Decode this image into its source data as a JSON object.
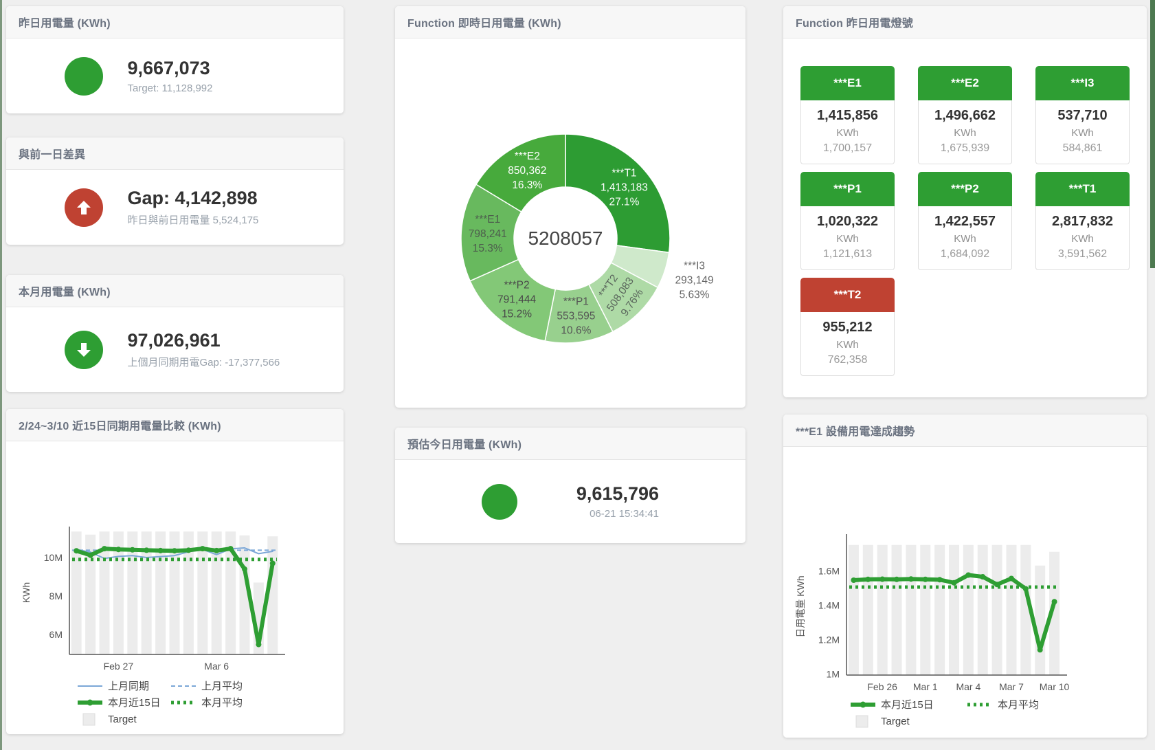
{
  "colors": {
    "green": "#2e9e33",
    "red": "#bf4232",
    "blue_line": "#7ba7d7",
    "bar_gray": "#ececec",
    "header_text": "#6a7280"
  },
  "cards": {
    "yesterday": {
      "title": "昨日用電量 (KWh)",
      "value": "9,667,073",
      "subtitle": "Target: 11,128,992"
    },
    "gap": {
      "title": "與前一日差異",
      "value": "Gap: 4,142,898",
      "subtitle": "昨日與前日用電量 5,524,175"
    },
    "month": {
      "title": "本月用電量 (KWh)",
      "value": "97,026,961",
      "subtitle": "上個月同期用電Gap: -17,377,566"
    },
    "donut": {
      "title": "Function 即時日用電量 (KWh)"
    },
    "estimate": {
      "title": "預估今日用電量 (KWh)",
      "value": "9,615,796",
      "subtitle": "06-21 15:34:41"
    },
    "status": {
      "title": "Function 昨日用電燈號"
    },
    "compare": {
      "title": "2/24~3/10 近15日同期用電量比較 (KWh)"
    },
    "trend": {
      "title": "***E1 設備用電達成趨勢"
    }
  },
  "status_tiles": [
    {
      "name": "***E1",
      "value": "1,415,856",
      "unit": "KWh",
      "target": "1,700,157",
      "status": "green"
    },
    {
      "name": "***E2",
      "value": "1,496,662",
      "unit": "KWh",
      "target": "1,675,939",
      "status": "green"
    },
    {
      "name": "***I3",
      "value": "537,710",
      "unit": "KWh",
      "target": "584,861",
      "status": "green"
    },
    {
      "name": "***P1",
      "value": "1,020,322",
      "unit": "KWh",
      "target": "1,121,613",
      "status": "green"
    },
    {
      "name": "***P2",
      "value": "1,422,557",
      "unit": "KWh",
      "target": "1,684,092",
      "status": "green"
    },
    {
      "name": "***T1",
      "value": "2,817,832",
      "unit": "KWh",
      "target": "3,591,562",
      "status": "green"
    },
    {
      "name": "***T2",
      "value": "955,212",
      "unit": "KWh",
      "target": "762,358",
      "status": "red"
    }
  ],
  "chart_data": [
    {
      "id": "donut",
      "type": "pie",
      "title": "Function 即時日用電量 (KWh)",
      "center_label": "5208057",
      "slices": [
        {
          "name": "***T1",
          "value": 1413183,
          "display": "1,413,183",
          "pct": "27.1%",
          "color": "#2d9c33",
          "label_color": "#ffffff"
        },
        {
          "name": "***I3",
          "value": 293149,
          "display": "293,149",
          "pct": "5.63%",
          "color": "#cfe9cb",
          "label_color": "#666666",
          "outside": true
        },
        {
          "name": "***T2",
          "value": 508083,
          "display": "508,083",
          "pct": "9.76%",
          "color": "#aedaa6",
          "label_color": "#5a665c",
          "rotate": -55
        },
        {
          "name": "***P1",
          "value": 553595,
          "display": "553,595",
          "pct": "10.6%",
          "color": "#98d08e",
          "label_color": "#555555"
        },
        {
          "name": "***P2",
          "value": 791444,
          "display": "791,444",
          "pct": "15.2%",
          "color": "#83c877",
          "label_color": "#4a4a4a"
        },
        {
          "name": "***E1",
          "value": 798241,
          "display": "798,241",
          "pct": "15.3%",
          "color": "#68b95e",
          "label_color": "#4d5d4d"
        },
        {
          "name": "***E2",
          "value": 850362,
          "display": "850,362",
          "pct": "16.3%",
          "color": "#47aa3c",
          "label_color": "#ffffff"
        }
      ]
    },
    {
      "id": "compare",
      "type": "line+bar",
      "title": "2/24~3/10 近15日同期用電量比較 (KWh)",
      "ylabel": "KWh",
      "ymin": 4964000,
      "ymax": 11393000,
      "yticks": [
        {
          "v": 6000000,
          "label": "6M"
        },
        {
          "v": 8000000,
          "label": "8M"
        },
        {
          "v": 10000000,
          "label": "10M"
        }
      ],
      "xticks": [
        {
          "i": 3,
          "label": "Feb 27"
        },
        {
          "i": 10,
          "label": "Mar 6"
        }
      ],
      "bars": {
        "name": "Target",
        "color": "#ececec",
        "values": [
          11350000,
          11190000,
          11350000,
          11350000,
          11350000,
          11350000,
          11350000,
          11350000,
          11350000,
          11350000,
          11350000,
          11350000,
          11150000,
          8700000,
          11100000
        ]
      },
      "series": [
        {
          "name": "上月同期",
          "type": "line",
          "color": "#7ba7d7",
          "width": 2,
          "values": [
            10420000,
            10280000,
            9950000,
            10060000,
            10100000,
            10000000,
            10050000,
            10100000,
            10300000,
            10420000,
            10150000,
            10450000,
            10500000,
            10200000,
            10320000
          ]
        },
        {
          "name": "上月平均",
          "type": "dashed",
          "color": "#7ba7d7",
          "width": 2,
          "value": 10380000
        },
        {
          "name": "本月平均",
          "type": "dotted",
          "color": "#2e9e33",
          "width": 5,
          "value": 9900000
        },
        {
          "name": "本月近15日",
          "type": "line",
          "color": "#2e9e33",
          "width": 6,
          "dots": true,
          "values": [
            10350000,
            10120000,
            10460000,
            10420000,
            10400000,
            10380000,
            10360000,
            10350000,
            10380000,
            10460000,
            10360000,
            10460000,
            9400000,
            5480000,
            9700000
          ]
        }
      ],
      "legend_rows": [
        [
          "上月同期",
          "上月平均"
        ],
        [
          "本月近15日",
          "本月平均"
        ],
        [
          "Target"
        ]
      ]
    },
    {
      "id": "trend",
      "type": "line+bar",
      "title": "***E1 設備用電達成趨勢",
      "ylabel": "日用電量 KWh",
      "ymin": 993000,
      "ymax": 1789000,
      "yticks": [
        {
          "v": 1000000,
          "label": "1M"
        },
        {
          "v": 1200000,
          "label": "1.2M"
        },
        {
          "v": 1400000,
          "label": "1.4M"
        },
        {
          "v": 1600000,
          "label": "1.6M"
        }
      ],
      "xticks": [
        {
          "i": 2,
          "label": "Feb 26"
        },
        {
          "i": 5,
          "label": "Mar 1"
        },
        {
          "i": 8,
          "label": "Mar 4"
        },
        {
          "i": 11,
          "label": "Mar 7"
        },
        {
          "i": 14,
          "label": "Mar 10"
        }
      ],
      "bars": {
        "name": "Target",
        "color": "#ececec",
        "values": [
          1750000,
          1750000,
          1750000,
          1750000,
          1750000,
          1750000,
          1750000,
          1750000,
          1750000,
          1750000,
          1750000,
          1750000,
          1750000,
          1630000,
          1710000
        ]
      },
      "series": [
        {
          "name": "本月平均",
          "type": "dotted",
          "color": "#2e9e33",
          "width": 5,
          "value": 1505000
        },
        {
          "name": "本月近15日",
          "type": "line",
          "color": "#2e9e33",
          "width": 6,
          "dots": true,
          "values": [
            1545000,
            1550000,
            1551000,
            1550000,
            1552000,
            1550000,
            1548000,
            1530000,
            1575000,
            1565000,
            1520000,
            1555000,
            1495000,
            1140000,
            1420000
          ]
        }
      ],
      "legend_rows": [
        [
          "本月近15日",
          "本月平均"
        ],
        [
          "Target"
        ]
      ]
    }
  ]
}
